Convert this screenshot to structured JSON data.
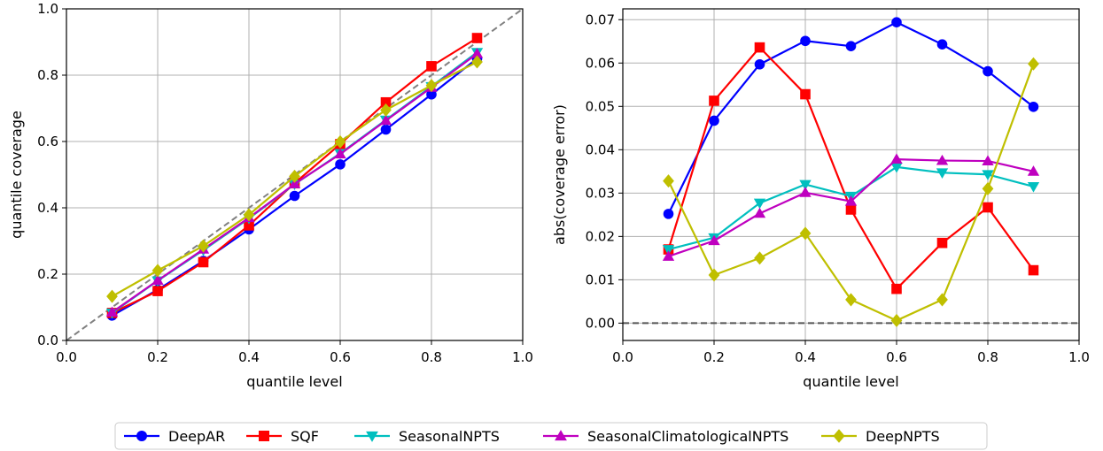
{
  "chart_data": [
    {
      "type": "line",
      "xlabel": "quantile level",
      "ylabel": "quantile coverage",
      "xlim": [
        0.0,
        1.0
      ],
      "ylim": [
        0.0,
        1.0
      ],
      "xticks": [
        "0.0",
        "0.2",
        "0.4",
        "0.6",
        "0.8",
        "1.0"
      ],
      "yticks": [
        "0.0",
        "0.2",
        "0.4",
        "0.6",
        "0.8",
        "1.0"
      ],
      "grid": true,
      "reference_line": {
        "style": "dashed",
        "color": "#808080",
        "from": [
          0,
          0
        ],
        "to": [
          1,
          1
        ]
      },
      "x": [
        0.1,
        0.2,
        0.3,
        0.4,
        0.5,
        0.6,
        0.7,
        0.8,
        0.9
      ],
      "series": [
        {
          "name": "DeepAR",
          "values": [
            0.075,
            0.153,
            0.24,
            0.335,
            0.436,
            0.531,
            0.636,
            0.742,
            0.85
          ]
        },
        {
          "name": "SQF",
          "values": [
            0.083,
            0.149,
            0.236,
            0.347,
            0.474,
            0.592,
            0.718,
            0.827,
            0.912
          ]
        },
        {
          "name": "SeasonalNPTS",
          "values": [
            0.083,
            0.18,
            0.272,
            0.368,
            0.471,
            0.564,
            0.665,
            0.766,
            0.869
          ]
        },
        {
          "name": "SeasonalClimatologicalNPTS",
          "values": [
            0.085,
            0.181,
            0.275,
            0.37,
            0.472,
            0.562,
            0.663,
            0.763,
            0.865
          ]
        },
        {
          "name": "DeepNPTS",
          "values": [
            0.133,
            0.211,
            0.285,
            0.379,
            0.495,
            0.599,
            0.695,
            0.769,
            0.84
          ]
        }
      ]
    },
    {
      "type": "line",
      "xlabel": "quantile level",
      "ylabel": "abs(coverage error)",
      "xlim": [
        0.0,
        1.0
      ],
      "ylim": [
        -0.004,
        0.0725
      ],
      "xticks": [
        "0.0",
        "0.2",
        "0.4",
        "0.6",
        "0.8",
        "1.0"
      ],
      "yticks": [
        "0.00",
        "0.01",
        "0.02",
        "0.03",
        "0.04",
        "0.05",
        "0.06",
        "0.07"
      ],
      "grid": true,
      "reference_line": {
        "style": "dashed",
        "color": "#555555",
        "y": 0.0
      },
      "x": [
        0.1,
        0.2,
        0.3,
        0.4,
        0.5,
        0.6,
        0.7,
        0.8,
        0.9
      ],
      "series": [
        {
          "name": "DeepAR",
          "values": [
            0.0252,
            0.0467,
            0.0597,
            0.0651,
            0.0639,
            0.0694,
            0.0643,
            0.0581,
            0.0499
          ]
        },
        {
          "name": "SQF",
          "values": [
            0.017,
            0.0513,
            0.0636,
            0.0528,
            0.0262,
            0.0079,
            0.0185,
            0.0267,
            0.0122
          ]
        },
        {
          "name": "SeasonalNPTS",
          "values": [
            0.017,
            0.0197,
            0.0277,
            0.032,
            0.0293,
            0.036,
            0.0347,
            0.0343,
            0.0315
          ]
        },
        {
          "name": "SeasonalClimatologicalNPTS",
          "values": [
            0.0154,
            0.019,
            0.0253,
            0.0301,
            0.0281,
            0.0378,
            0.0375,
            0.0374,
            0.035
          ]
        },
        {
          "name": "DeepNPTS",
          "values": [
            0.0328,
            0.0111,
            0.015,
            0.0207,
            0.0054,
            0.0006,
            0.0054,
            0.031,
            0.0598
          ]
        }
      ]
    }
  ],
  "legend": {
    "placement": "bottom-center",
    "items": [
      {
        "name": "DeepAR",
        "color": "#0000ff",
        "marker": "circle"
      },
      {
        "name": "SQF",
        "color": "#ff0000",
        "marker": "square"
      },
      {
        "name": "SeasonalNPTS",
        "color": "#00bfbf",
        "marker": "triangle-down"
      },
      {
        "name": "SeasonalClimatologicalNPTS",
        "color": "#bf00bf",
        "marker": "triangle-up"
      },
      {
        "name": "DeepNPTS",
        "color": "#bfbf00",
        "marker": "diamond"
      }
    ]
  }
}
